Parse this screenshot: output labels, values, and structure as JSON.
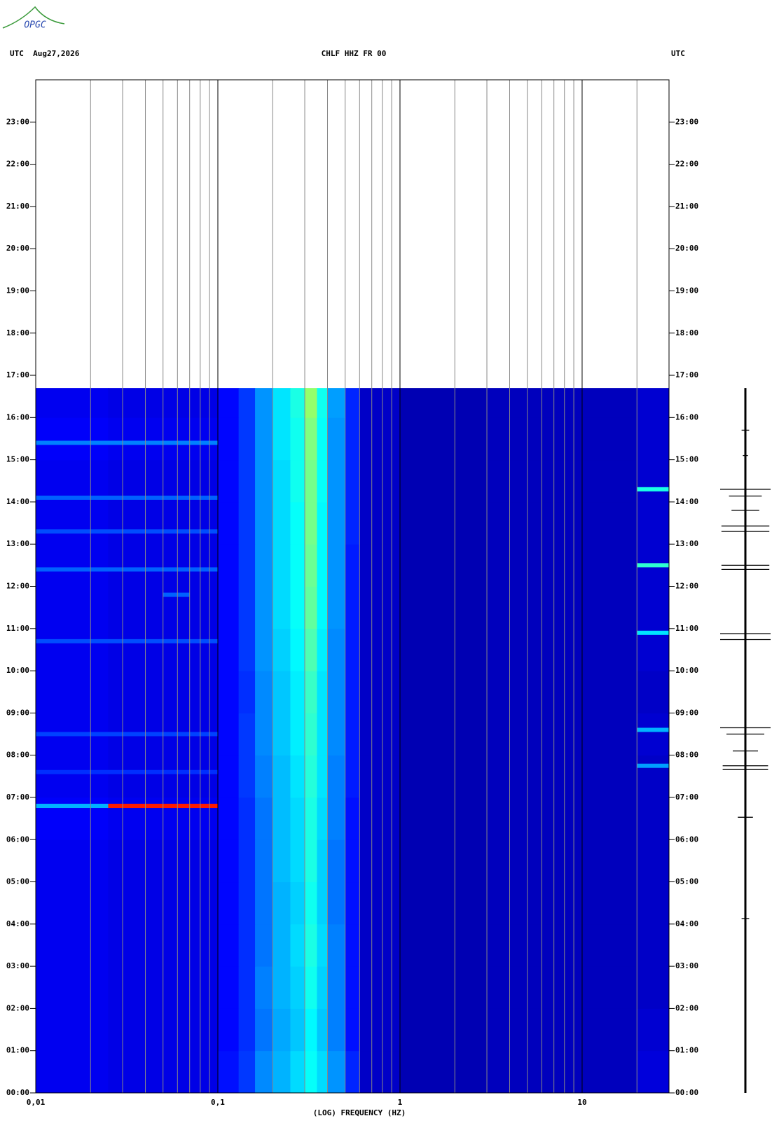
{
  "chart_data": {
    "type": "spectrogram",
    "logo": "OPGC",
    "left_header": "UTC  Aug27,2026",
    "title": "CHLF HHZ FR 00",
    "right_header": "UTC",
    "xlabel": "(LOG) FREQUENCY (HZ)",
    "xscale": "log",
    "xlim": [
      0.01,
      30
    ],
    "xticks": [
      {
        "value": 0.01,
        "label": "0,01"
      },
      {
        "value": 0.1,
        "label": "0,1"
      },
      1,
      10
    ],
    "xgrid": [
      0.02,
      0.03,
      0.04,
      0.05,
      0.06,
      0.07,
      0.08,
      0.09,
      0.2,
      0.3,
      0.4,
      0.5,
      0.6,
      0.7,
      0.8,
      0.9,
      2,
      3,
      4,
      5,
      6,
      7,
      8,
      9,
      20
    ],
    "ylim": [
      0,
      24
    ],
    "yticks": [
      {
        "value": 0,
        "label": "00:00"
      },
      {
        "value": 1,
        "label": "01:00"
      },
      {
        "value": 2,
        "label": "02:00"
      },
      {
        "value": 3,
        "label": "03:00"
      },
      {
        "value": 4,
        "label": "04:00"
      },
      {
        "value": 5,
        "label": "05:00"
      },
      {
        "value": 6,
        "label": "06:00"
      },
      {
        "value": 7,
        "label": "07:00"
      },
      {
        "value": 8,
        "label": "08:00"
      },
      {
        "value": 9,
        "label": "09:00"
      },
      {
        "value": 10,
        "label": "10:00"
      },
      {
        "value": 11,
        "label": "11:00"
      },
      {
        "value": 12,
        "label": "12:00"
      },
      {
        "value": 13,
        "label": "13:00"
      },
      {
        "value": 14,
        "label": "14:00"
      },
      {
        "value": 15,
        "label": "15:00"
      },
      {
        "value": 16,
        "label": "16:00"
      },
      {
        "value": 17,
        "label": "17:00"
      },
      {
        "value": 18,
        "label": "18:00"
      },
      {
        "value": 19,
        "label": "19:00"
      },
      {
        "value": 20,
        "label": "20:00"
      },
      {
        "value": 21,
        "label": "21:00"
      },
      {
        "value": 22,
        "label": "22:00"
      },
      {
        "value": 23,
        "label": "23:00"
      }
    ],
    "colormap": "jet",
    "freq_edges": [
      0.01,
      0.025,
      0.05,
      0.1,
      0.13,
      0.16,
      0.2,
      0.25,
      0.3,
      0.35,
      0.4,
      0.5,
      0.6,
      1,
      3,
      20,
      30
    ],
    "time_edges": [
      0,
      1,
      2,
      3,
      4,
      5,
      6,
      7,
      8,
      9,
      10,
      11,
      12,
      13,
      14,
      15,
      16,
      16.7
    ],
    "intensity": [
      [
        0.11,
        0.1,
        0.1,
        0.14,
        0.18,
        0.26,
        0.3,
        0.34,
        0.38,
        0.34,
        0.27,
        0.16,
        0.07,
        0.05,
        0.06,
        0.09
      ],
      [
        0.11,
        0.1,
        0.1,
        0.13,
        0.17,
        0.24,
        0.29,
        0.32,
        0.37,
        0.32,
        0.25,
        0.14,
        0.07,
        0.05,
        0.06,
        0.08
      ],
      [
        0.11,
        0.1,
        0.1,
        0.13,
        0.17,
        0.25,
        0.3,
        0.33,
        0.39,
        0.33,
        0.25,
        0.14,
        0.07,
        0.05,
        0.06,
        0.07
      ],
      [
        0.11,
        0.1,
        0.1,
        0.13,
        0.17,
        0.24,
        0.3,
        0.34,
        0.4,
        0.34,
        0.25,
        0.14,
        0.07,
        0.05,
        0.06,
        0.07
      ],
      [
        0.11,
        0.1,
        0.1,
        0.13,
        0.17,
        0.24,
        0.3,
        0.33,
        0.39,
        0.33,
        0.24,
        0.14,
        0.07,
        0.05,
        0.06,
        0.07
      ],
      [
        0.11,
        0.1,
        0.1,
        0.13,
        0.17,
        0.24,
        0.31,
        0.34,
        0.4,
        0.33,
        0.24,
        0.14,
        0.07,
        0.05,
        0.06,
        0.07
      ],
      [
        0.12,
        0.11,
        0.11,
        0.13,
        0.17,
        0.24,
        0.31,
        0.34,
        0.4,
        0.34,
        0.25,
        0.14,
        0.07,
        0.05,
        0.06,
        0.07
      ],
      [
        0.11,
        0.1,
        0.1,
        0.13,
        0.18,
        0.25,
        0.31,
        0.35,
        0.41,
        0.35,
        0.25,
        0.15,
        0.07,
        0.05,
        0.06,
        0.07
      ],
      [
        0.11,
        0.1,
        0.1,
        0.13,
        0.18,
        0.26,
        0.32,
        0.36,
        0.42,
        0.35,
        0.26,
        0.15,
        0.07,
        0.05,
        0.06,
        0.08
      ],
      [
        0.11,
        0.1,
        0.1,
        0.13,
        0.17,
        0.26,
        0.32,
        0.36,
        0.43,
        0.35,
        0.26,
        0.15,
        0.07,
        0.05,
        0.06,
        0.07
      ],
      [
        0.11,
        0.1,
        0.1,
        0.13,
        0.18,
        0.27,
        0.33,
        0.37,
        0.45,
        0.36,
        0.26,
        0.15,
        0.07,
        0.05,
        0.06,
        0.08
      ],
      [
        0.11,
        0.1,
        0.1,
        0.13,
        0.18,
        0.27,
        0.34,
        0.38,
        0.47,
        0.37,
        0.27,
        0.15,
        0.07,
        0.05,
        0.06,
        0.08
      ],
      [
        0.11,
        0.1,
        0.1,
        0.13,
        0.18,
        0.27,
        0.34,
        0.38,
        0.48,
        0.37,
        0.27,
        0.15,
        0.07,
        0.05,
        0.06,
        0.08
      ],
      [
        0.11,
        0.1,
        0.1,
        0.13,
        0.18,
        0.27,
        0.34,
        0.38,
        0.49,
        0.37,
        0.27,
        0.16,
        0.07,
        0.05,
        0.06,
        0.08
      ],
      [
        0.11,
        0.1,
        0.1,
        0.13,
        0.18,
        0.27,
        0.34,
        0.39,
        0.49,
        0.38,
        0.27,
        0.16,
        0.07,
        0.05,
        0.06,
        0.08
      ],
      [
        0.12,
        0.11,
        0.11,
        0.13,
        0.18,
        0.27,
        0.35,
        0.39,
        0.5,
        0.38,
        0.27,
        0.16,
        0.07,
        0.05,
        0.06,
        0.08
      ],
      [
        0.11,
        0.1,
        0.1,
        0.13,
        0.18,
        0.27,
        0.35,
        0.4,
        0.52,
        0.39,
        0.28,
        0.16,
        0.07,
        0.05,
        0.06,
        0.08
      ]
    ],
    "tones": [
      {
        "time": 6.8,
        "freq": [
          0.01,
          0.025
        ],
        "value": 0.3
      },
      {
        "time": 6.8,
        "freq": [
          0.025,
          0.1
        ],
        "value": 0.85
      },
      {
        "time": 15.4,
        "freq": [
          0.01,
          0.1
        ],
        "value": 0.25
      },
      {
        "time": 14.1,
        "freq": [
          0.01,
          0.1
        ],
        "value": 0.22
      },
      {
        "time": 13.3,
        "freq": [
          0.01,
          0.1
        ],
        "value": 0.2
      },
      {
        "time": 12.4,
        "freq": [
          0.01,
          0.1
        ],
        "value": 0.22
      },
      {
        "time": 11.8,
        "freq": [
          0.05,
          0.07
        ],
        "value": 0.22
      },
      {
        "time": 10.7,
        "freq": [
          0.01,
          0.1
        ],
        "value": 0.2
      },
      {
        "time": 8.5,
        "freq": [
          0.01,
          0.1
        ],
        "value": 0.19
      },
      {
        "time": 7.6,
        "freq": [
          0.01,
          0.1
        ],
        "value": 0.17
      },
      {
        "time": 14.3,
        "freq": [
          20,
          30
        ],
        "value": 0.4
      },
      {
        "time": 12.5,
        "freq": [
          20,
          30
        ],
        "value": 0.42
      },
      {
        "time": 10.9,
        "freq": [
          20,
          30
        ],
        "value": 0.35
      },
      {
        "time": 8.6,
        "freq": [
          20,
          30
        ],
        "value": 0.3
      },
      {
        "time": 7.75,
        "freq": [
          20,
          30
        ],
        "value": 0.28
      }
    ],
    "trace": {
      "times": [
        15.7,
        15.1,
        14.3,
        14.14,
        13.8,
        13.43,
        13.3,
        12.5,
        12.4,
        10.88,
        10.74,
        8.65,
        8.5,
        8.1,
        7.75,
        7.66,
        6.53,
        4.13
      ],
      "amplitudes": [
        0.15,
        0.1,
        1,
        0.65,
        0.55,
        0.95,
        0.95,
        0.95,
        0.95,
        1,
        1,
        1,
        0.75,
        0.5,
        0.9,
        0.9,
        0.3,
        0.15
      ]
    }
  }
}
